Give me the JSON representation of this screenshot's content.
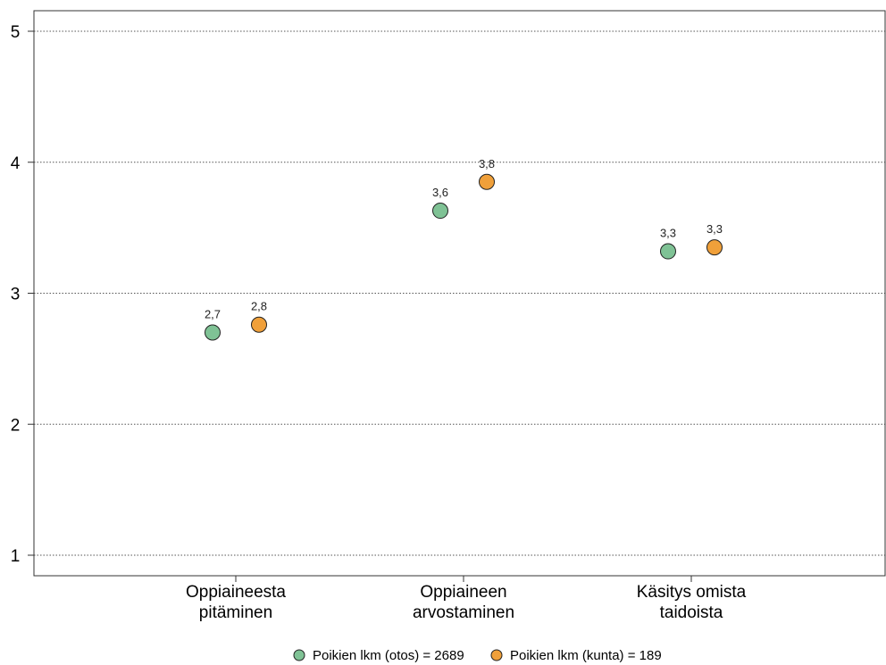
{
  "chart_data": {
    "type": "scatter",
    "categories": [
      [
        "Oppiaineesta",
        "pitäminen"
      ],
      [
        "Oppiaineen",
        "arvostaminen"
      ],
      [
        "Käsitys omista",
        "taidoista"
      ]
    ],
    "series": [
      {
        "name": "Poikien lkm (otos) = 2689",
        "color": "#7fc295",
        "values": [
          2.7,
          3.63,
          3.32
        ],
        "labels": [
          "2,7",
          "3,6",
          "3,3"
        ]
      },
      {
        "name": "Poikien lkm (kunta) = 189",
        "color": "#f0a03a",
        "values": [
          2.76,
          3.85,
          3.35
        ],
        "labels": [
          "2,8",
          "3,8",
          "3,3"
        ]
      }
    ],
    "yticks": [
      "1",
      "2",
      "3",
      "4",
      "5"
    ],
    "ylim": [
      0.84,
      5.16
    ],
    "grid": "horizontal dotted",
    "legend_position": "bottom"
  }
}
